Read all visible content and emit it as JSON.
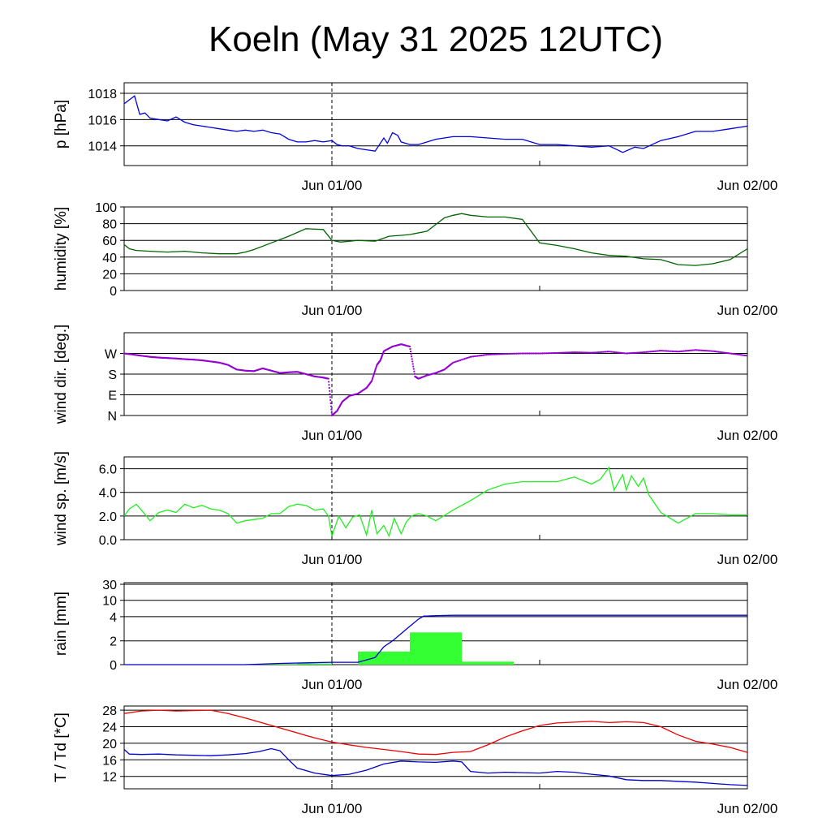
{
  "title": "Koeln (May 31 2025 12UTC)",
  "x_ticks": [
    "Jun 01/00",
    "Jun 02/00"
  ],
  "colors": {
    "pressure": "#0000dd",
    "humidity": "#006400",
    "wind_dir": "#9400d3",
    "wind_speed": "#22ee22",
    "rain_cumulative": "#0000cc",
    "rain_bars": "#33ff33",
    "temperature": "#ee0000",
    "dewpoint": "#0000cc"
  },
  "chart_data": [
    {
      "type": "line",
      "ylabel": "p [hPa]",
      "ylim": [
        1012.5,
        1018.8
      ],
      "yticks": [
        "1014",
        "1016",
        "1018"
      ],
      "x_unit": "hours since May 31 12UTC",
      "xlim": [
        0,
        36
      ],
      "series": [
        {
          "x": [
            0,
            0.3,
            0.6,
            0.9,
            1.2,
            1.5,
            2,
            2.5,
            3,
            3.5,
            4,
            4.5,
            5,
            5.5,
            6,
            6.5,
            7,
            7.5,
            8,
            8.5,
            9,
            9.5,
            10,
            10.5,
            11,
            11.5,
            12,
            12.3,
            12.6,
            13,
            13.5,
            14,
            14.5,
            15,
            15.2,
            15.5,
            15.8,
            16,
            16.5,
            17,
            18,
            19,
            20,
            21,
            22,
            23,
            24,
            25,
            26,
            27,
            28,
            28.8,
            29.5,
            30,
            31,
            32,
            33,
            34,
            35,
            36
          ],
          "y": [
            1017.2,
            1017.5,
            1017.8,
            1016.4,
            1016.5,
            1016.1,
            1016.0,
            1015.9,
            1016.2,
            1015.8,
            1015.6,
            1015.5,
            1015.4,
            1015.3,
            1015.2,
            1015.1,
            1015.2,
            1015.1,
            1015.2,
            1015.0,
            1014.9,
            1014.5,
            1014.3,
            1014.3,
            1014.4,
            1014.3,
            1014.4,
            1014.1,
            1014.0,
            1014.0,
            1013.8,
            1013.7,
            1013.6,
            1014.6,
            1014.2,
            1015.0,
            1014.8,
            1014.3,
            1014.1,
            1014.1,
            1014.5,
            1014.7,
            1014.7,
            1014.6,
            1014.5,
            1014.5,
            1014.1,
            1014.1,
            1014.0,
            1013.9,
            1014.0,
            1013.5,
            1013.9,
            1013.8,
            1014.4,
            1014.7,
            1015.1,
            1015.1,
            1015.3,
            1015.5
          ]
        }
      ]
    },
    {
      "type": "line",
      "ylabel": "humidity [%]",
      "ylim": [
        0,
        100
      ],
      "yticks": [
        "0",
        "20",
        "40",
        "60",
        "80",
        "100"
      ],
      "xlim": [
        0,
        36
      ],
      "series": [
        {
          "x": [
            0,
            0.3,
            0.7,
            1.5,
            2.5,
            3.5,
            4.5,
            5.5,
            6.5,
            7,
            7.5,
            8.5,
            9.5,
            10.5,
            11.5,
            12,
            12.5,
            13.5,
            14.5,
            15.3,
            16,
            16.5,
            17.5,
            18.5,
            19,
            19.5,
            20,
            21,
            22,
            23,
            24,
            25,
            26,
            27,
            28,
            29,
            30,
            31,
            32,
            33,
            34,
            35,
            36
          ],
          "y": [
            55,
            50,
            48,
            47,
            46,
            47,
            45,
            44,
            44,
            46,
            49,
            57,
            65,
            74,
            73,
            60,
            58,
            60,
            59,
            65,
            66,
            67,
            71,
            87,
            90,
            92,
            90,
            88,
            88,
            85,
            57,
            54,
            50,
            45,
            42,
            41,
            38,
            37,
            31,
            30,
            32,
            37,
            50
          ]
        }
      ]
    },
    {
      "type": "scatter",
      "ylabel": "wind dir. [deg.]",
      "ylim": [
        0,
        360
      ],
      "yticks": [
        "N",
        "E",
        "S",
        "W"
      ],
      "ytick_values": [
        0,
        90,
        180,
        270
      ],
      "xlim": [
        0,
        36
      ],
      "series": [
        {
          "x": [
            0,
            0.5,
            1,
            1.5,
            2,
            2.5,
            3,
            3.5,
            4,
            4.5,
            5,
            5.5,
            6,
            6.5,
            7,
            7.5,
            8,
            8.5,
            9,
            9.5,
            10,
            10.5,
            11,
            11.5,
            11.8,
            12,
            12.3,
            12.6,
            13,
            13.5,
            14,
            14.3,
            14.6,
            14.8,
            15,
            15.5,
            16,
            16.5,
            16.8,
            17,
            17.5,
            18,
            18.5,
            19,
            20,
            21,
            22,
            23,
            24,
            25,
            26,
            27,
            28,
            29,
            30,
            31,
            32,
            33,
            34,
            35,
            36
          ],
          "y": [
            270,
            265,
            260,
            255,
            252,
            250,
            248,
            245,
            243,
            240,
            235,
            230,
            220,
            200,
            195,
            193,
            205,
            195,
            185,
            188,
            190,
            180,
            170,
            165,
            160,
            0,
            20,
            60,
            85,
            95,
            120,
            150,
            220,
            240,
            280,
            300,
            310,
            300,
            170,
            160,
            175,
            185,
            200,
            230,
            255,
            265,
            268,
            270,
            270,
            272,
            275,
            273,
            278,
            270,
            275,
            282,
            278,
            285,
            280,
            270,
            260
          ]
        }
      ]
    },
    {
      "type": "line",
      "ylabel": "wind sp. [m/s]",
      "ylim": [
        0,
        7
      ],
      "yticks": [
        "0.0",
        "2.0",
        "4.0",
        "6.0"
      ],
      "xlim": [
        0,
        36
      ],
      "series": [
        {
          "x": [
            0,
            0.3,
            0.7,
            1,
            1.5,
            2,
            2.5,
            3,
            3.5,
            4,
            4.5,
            5,
            5.5,
            6,
            6.5,
            7,
            7.5,
            8,
            8.5,
            9,
            9.5,
            10,
            10.5,
            11,
            11.5,
            11.8,
            12,
            12.4,
            12.8,
            13.2,
            13.6,
            14,
            14.3,
            14.6,
            15,
            15.3,
            15.6,
            16,
            16.3,
            16.6,
            17,
            17.5,
            18,
            19,
            20,
            21,
            22,
            23,
            24,
            25,
            26,
            27,
            27.5,
            28,
            28.3,
            28.8,
            29,
            29.3,
            29.7,
            30,
            30.3,
            31,
            32,
            33,
            34,
            35,
            36
          ],
          "y": [
            2.0,
            2.6,
            3.0,
            2.5,
            1.6,
            2.3,
            2.5,
            2.3,
            3.0,
            2.7,
            2.9,
            2.6,
            2.5,
            2.2,
            1.4,
            1.6,
            1.7,
            1.8,
            2.2,
            2.2,
            2.8,
            3.0,
            2.9,
            2.5,
            2.6,
            2.0,
            0.3,
            2.0,
            1.0,
            1.9,
            2.1,
            0.4,
            2.5,
            0.5,
            1.2,
            0.3,
            1.8,
            0.5,
            1.5,
            2.0,
            2.2,
            2.0,
            1.6,
            2.5,
            3.3,
            4.2,
            4.7,
            4.9,
            4.9,
            4.9,
            5.3,
            4.7,
            5.1,
            6.1,
            4.2,
            5.5,
            4.2,
            5.4,
            4.5,
            5.2,
            3.8,
            2.3,
            1.4,
            2.2,
            2.2,
            2.1,
            2.1
          ]
        }
      ]
    },
    {
      "type": "bar",
      "ylabel": "rain [mm]",
      "ylim": [
        0,
        30
      ],
      "yticks": [
        "0",
        "2",
        "4",
        "10",
        "30"
      ],
      "xlim": [
        0,
        36
      ],
      "series": [
        {
          "name": "",
          "type": "bar",
          "bins": [
            [
              7,
              10,
              0.05
            ],
            [
              10,
              12,
              0.1
            ],
            [
              13.5,
              16.5,
              1.1
            ],
            [
              16.5,
              19.5,
              2.7
            ],
            [
              19.5,
              22.5,
              0.25
            ]
          ]
        },
        {
          "name": "",
          "type": "line",
          "x": [
            0,
            7,
            9,
            12,
            13.5,
            14.5,
            15,
            15.5,
            16,
            16.5,
            17,
            17.3,
            17.5,
            18,
            19,
            20,
            22,
            36
          ],
          "y": [
            0,
            0,
            0.1,
            0.2,
            0.2,
            0.6,
            1.5,
            2.0,
            2.6,
            3.2,
            3.8,
            4.2,
            4.2,
            4.4,
            4.5,
            4.5,
            4.5,
            4.5
          ]
        }
      ]
    },
    {
      "type": "line",
      "ylabel": "T / Td [*C]",
      "ylim": [
        9,
        29
      ],
      "yticks": [
        "12",
        "16",
        "20",
        "24",
        "28"
      ],
      "xlim": [
        0,
        36
      ],
      "series": [
        {
          "name": "",
          "x": [
            0,
            1,
            2,
            3,
            4,
            5,
            6,
            7,
            8,
            9,
            10,
            11,
            12,
            13,
            14,
            15,
            16,
            17,
            18,
            19,
            20,
            21,
            22,
            23,
            24,
            25,
            26,
            27,
            28,
            29,
            30,
            31,
            32,
            33,
            34,
            35,
            36
          ],
          "y": [
            27.2,
            27.8,
            28.0,
            27.8,
            27.9,
            28.0,
            27.2,
            26.1,
            24.9,
            23.7,
            22.5,
            21.3,
            20.3,
            19.6,
            19.0,
            18.5,
            18.0,
            17.4,
            17.3,
            17.8,
            18.0,
            19.6,
            21.5,
            23.0,
            24.3,
            24.9,
            25.1,
            25.3,
            25.0,
            25.2,
            25.0,
            24.0,
            22.0,
            20.5,
            19.8,
            19.0,
            17.8
          ]
        },
        {
          "name": "",
          "x": [
            0,
            0.3,
            1,
            2,
            3,
            4,
            5,
            6,
            7,
            7.8,
            8.5,
            9,
            9.5,
            10,
            11,
            12,
            13,
            14,
            15,
            16,
            17,
            18,
            19,
            19.5,
            20,
            21,
            22,
            23,
            24,
            25,
            26,
            27,
            28,
            29,
            30,
            31,
            32,
            33,
            34,
            35,
            36
          ],
          "y": [
            18.5,
            17.4,
            17.3,
            17.4,
            17.2,
            17.1,
            17.0,
            17.2,
            17.5,
            18.0,
            18.7,
            18.2,
            16.0,
            14.0,
            12.8,
            12.2,
            12.5,
            13.5,
            15.0,
            15.7,
            15.5,
            15.4,
            15.7,
            15.5,
            13.2,
            12.8,
            13.0,
            12.9,
            12.8,
            13.2,
            13.0,
            12.5,
            12.1,
            11.2,
            11.0,
            11.0,
            10.8,
            10.6,
            10.3,
            10.0,
            9.8
          ]
        }
      ]
    }
  ]
}
